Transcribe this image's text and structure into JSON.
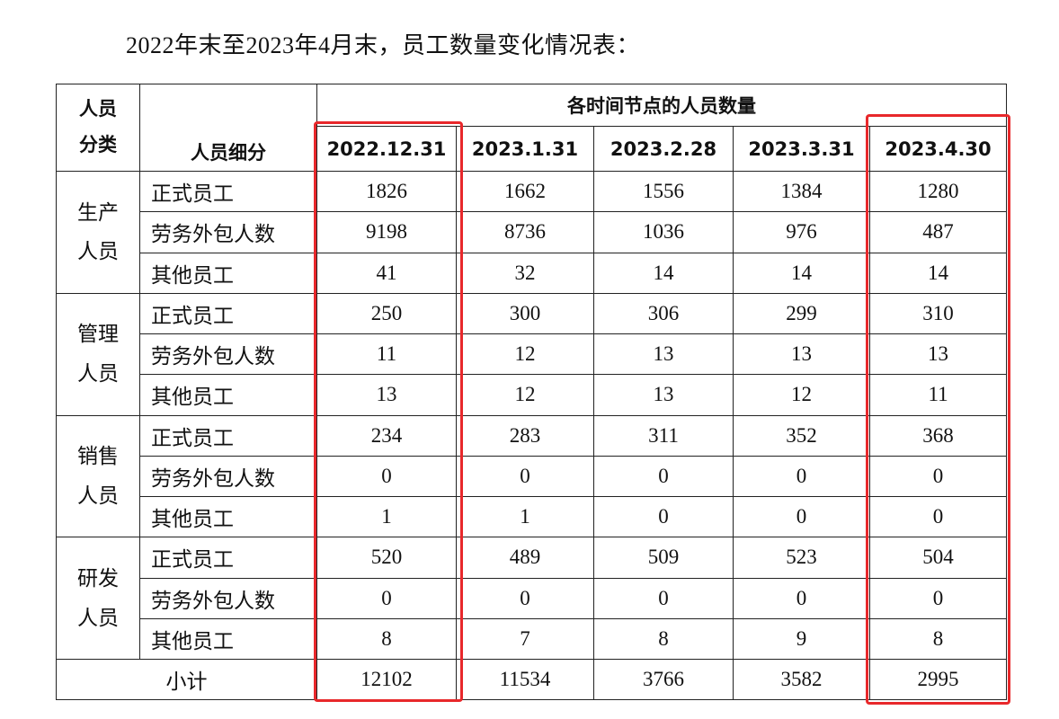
{
  "title": "2022年末至2023年4月末，员工数量变化情况表：",
  "table": {
    "header": {
      "category": "人员分类",
      "subcategory": "人员细分",
      "group": "各时间节点的人员数量",
      "dates": [
        "2022.12.31",
        "2023.1.31",
        "2023.2.28",
        "2023.3.31",
        "2023.4.30"
      ]
    },
    "groups": [
      {
        "name": "生产人员",
        "rows": [
          {
            "label": "正式员工",
            "values": [
              1826,
              1662,
              1556,
              1384,
              1280
            ]
          },
          {
            "label": "劳务外包人数",
            "values": [
              9198,
              8736,
              1036,
              976,
              487
            ]
          },
          {
            "label": "其他员工",
            "values": [
              41,
              32,
              14,
              14,
              14
            ]
          }
        ]
      },
      {
        "name": "管理人员",
        "rows": [
          {
            "label": "正式员工",
            "values": [
              250,
              300,
              306,
              299,
              310
            ]
          },
          {
            "label": "劳务外包人数",
            "values": [
              11,
              12,
              13,
              13,
              13
            ]
          },
          {
            "label": "其他员工",
            "values": [
              13,
              12,
              13,
              12,
              11
            ]
          }
        ]
      },
      {
        "name": "销售人员",
        "rows": [
          {
            "label": "正式员工",
            "values": [
              234,
              283,
              311,
              352,
              368
            ]
          },
          {
            "label": "劳务外包人数",
            "values": [
              0,
              0,
              0,
              0,
              0
            ]
          },
          {
            "label": "其他员工",
            "values": [
              1,
              1,
              0,
              0,
              0
            ]
          }
        ]
      },
      {
        "name": "研发人员",
        "rows": [
          {
            "label": "正式员工",
            "values": [
              520,
              489,
              509,
              523,
              504
            ]
          },
          {
            "label": "劳务外包人数",
            "values": [
              0,
              0,
              0,
              0,
              0
            ]
          },
          {
            "label": "其他员工",
            "values": [
              8,
              7,
              8,
              9,
              8
            ]
          }
        ]
      }
    ],
    "subtotal": {
      "label": "小计",
      "values": [
        12102,
        11534,
        3766,
        3582,
        2995
      ]
    }
  }
}
